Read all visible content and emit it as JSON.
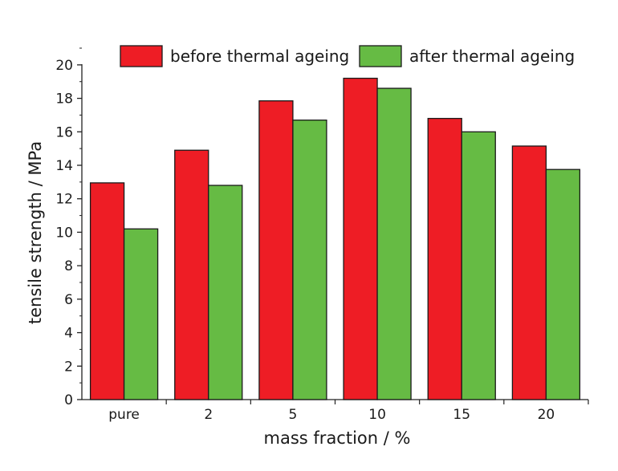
{
  "chart_data": {
    "type": "bar",
    "title": "",
    "xlabel": "mass fraction / %",
    "ylabel": "tensile strength / MPa",
    "categories": [
      "pure",
      "2",
      "5",
      "10",
      "15",
      "20"
    ],
    "series": [
      {
        "name": "before thermal ageing",
        "color": "#ee1d25",
        "values": [
          12.95,
          14.9,
          17.85,
          19.2,
          16.8,
          15.15
        ]
      },
      {
        "name": "after thermal ageing",
        "color": "#66bb44",
        "values": [
          10.2,
          12.8,
          16.7,
          18.6,
          16.0,
          13.75
        ]
      }
    ],
    "ylim": [
      0,
      21
    ],
    "yticks": [
      0,
      2,
      4,
      6,
      8,
      10,
      12,
      14,
      16,
      18,
      20
    ],
    "grid": false,
    "legend_position": "top"
  }
}
